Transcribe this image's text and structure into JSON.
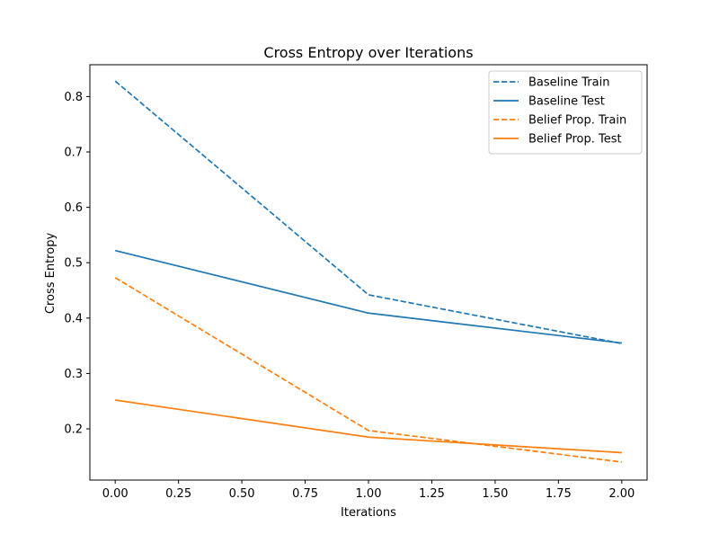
{
  "chart_data": {
    "type": "line",
    "title": "Cross Entropy over Iterations",
    "xlabel": "Iterations",
    "ylabel": "Cross Entropy",
    "xlim": [
      -0.1,
      2.1
    ],
    "ylim": [
      0.1075,
      0.8575
    ],
    "x": [
      0.0,
      1.0,
      2.0
    ],
    "xticks": [
      "0.00",
      "0.25",
      "0.50",
      "0.75",
      "1.00",
      "1.25",
      "1.50",
      "1.75",
      "2.00"
    ],
    "yticks": [
      "0.2",
      "0.3",
      "0.4",
      "0.5",
      "0.6",
      "0.7",
      "0.8"
    ],
    "grid": false,
    "legend_position": "top-right",
    "series": [
      {
        "name": "Baseline Train",
        "values": [
          0.828,
          0.442,
          0.354
        ],
        "color": "#1f77b4",
        "style": "dashed"
      },
      {
        "name": "Baseline Test",
        "values": [
          0.522,
          0.409,
          0.355
        ],
        "color": "#1f77b4",
        "style": "solid"
      },
      {
        "name": "Belief Prop. Train",
        "values": [
          0.473,
          0.197,
          0.14
        ],
        "color": "#ff7f0e",
        "style": "dashed"
      },
      {
        "name": "Belief Prop. Test",
        "values": [
          0.252,
          0.185,
          0.157
        ],
        "color": "#ff7f0e",
        "style": "solid"
      }
    ]
  }
}
